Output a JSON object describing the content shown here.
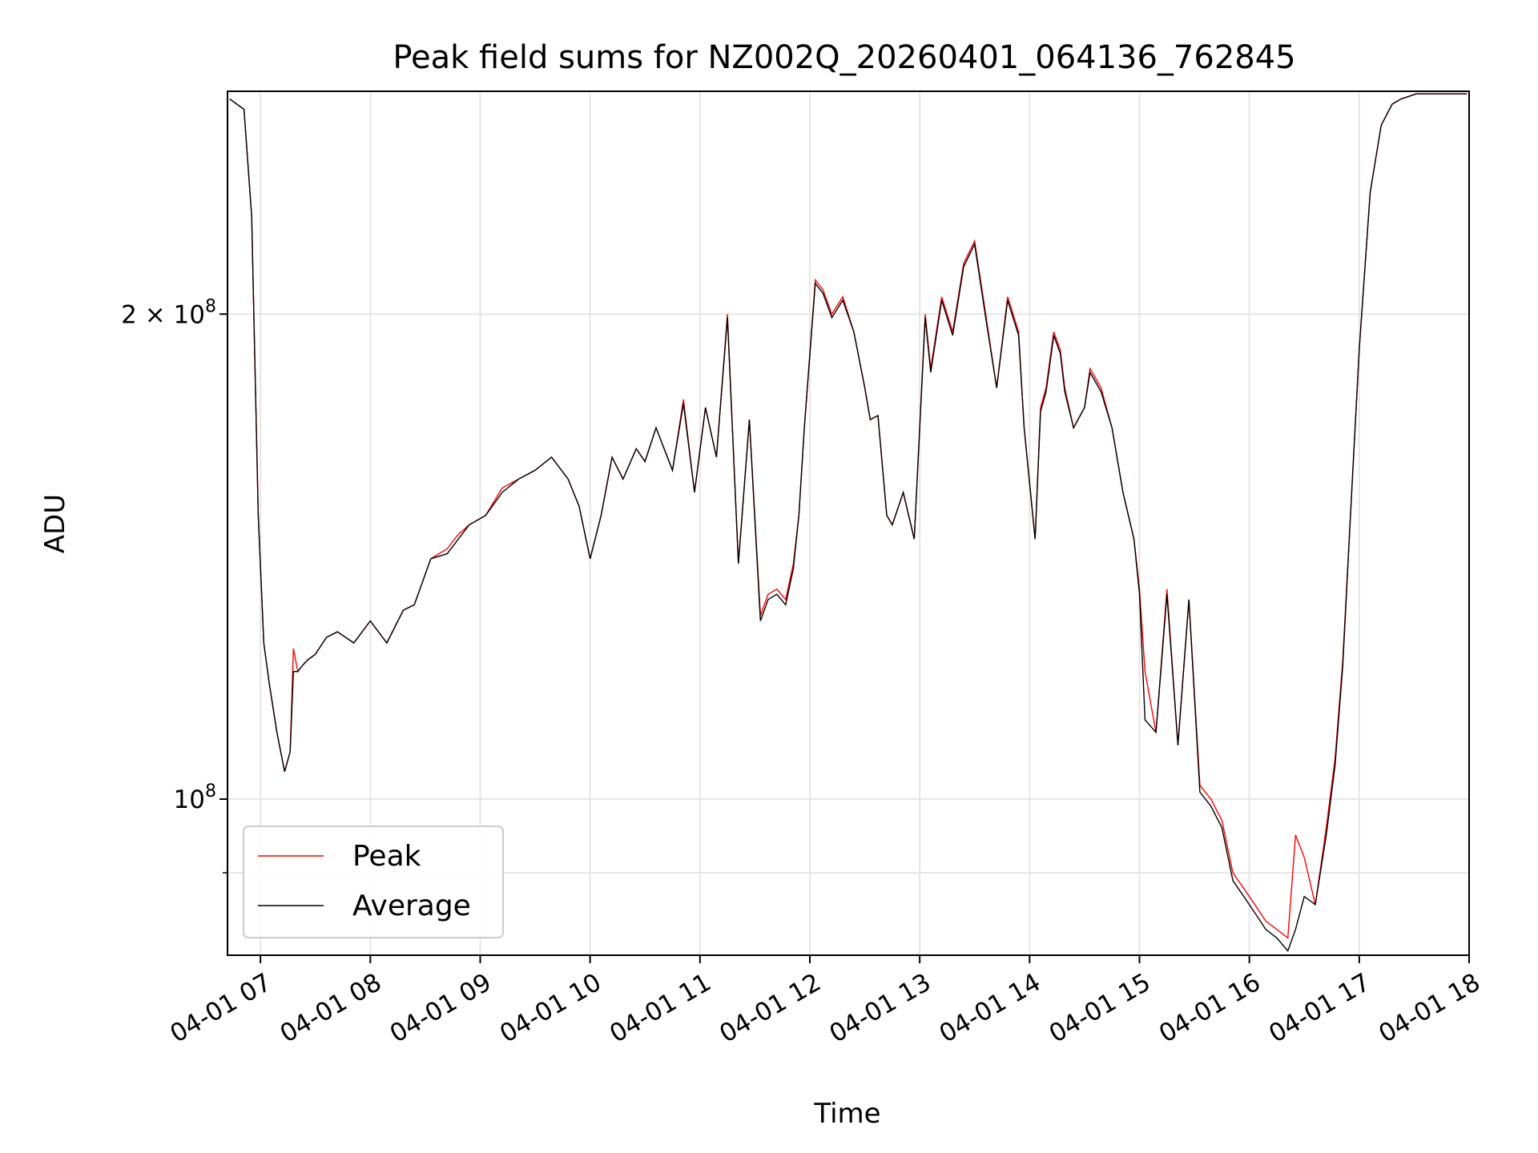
{
  "chart_data": {
    "type": "line",
    "title": "Peak field sums for NZ002Q_20260401_064136_762845",
    "xlabel": "Time",
    "ylabel": "ADU",
    "yscale": "log",
    "ylim": [
      80000000,
      275000000
    ],
    "xlim_hours": [
      6.7,
      18.0
    ],
    "x_ticks": [
      {
        "value": 7,
        "label": "04-01 07"
      },
      {
        "value": 8,
        "label": "04-01 08"
      },
      {
        "value": 9,
        "label": "04-01 09"
      },
      {
        "value": 10,
        "label": "04-01 10"
      },
      {
        "value": 11,
        "label": "04-01 11"
      },
      {
        "value": 12,
        "label": "04-01 12"
      },
      {
        "value": 13,
        "label": "04-01 13"
      },
      {
        "value": 14,
        "label": "04-01 14"
      },
      {
        "value": 15,
        "label": "04-01 15"
      },
      {
        "value": 16,
        "label": "04-01 16"
      },
      {
        "value": 17,
        "label": "04-01 17"
      },
      {
        "value": 18,
        "label": "04-01 18"
      }
    ],
    "y_ticks": [
      {
        "value": 100000000,
        "base": "10",
        "exp": "8",
        "coef": ""
      },
      {
        "value": 200000000,
        "base": "10",
        "exp": "8",
        "coef": "2 × "
      }
    ],
    "y_minor_ticks": [
      90000000
    ],
    "grid": true,
    "legend_position": "lower-left",
    "series": [
      {
        "name": "Peak",
        "color": "#ff0000",
        "x": [
          6.72,
          6.85,
          6.92,
          6.98,
          7.03,
          7.08,
          7.15,
          7.22,
          7.27,
          7.3,
          7.34,
          7.38,
          7.43,
          7.5,
          7.6,
          7.7,
          7.85,
          8.0,
          8.15,
          8.3,
          8.4,
          8.55,
          8.7,
          8.8,
          8.9,
          9.05,
          9.2,
          9.35,
          9.5,
          9.65,
          9.8,
          9.9,
          10.0,
          10.1,
          10.2,
          10.3,
          10.42,
          10.5,
          10.6,
          10.75,
          10.85,
          10.95,
          11.05,
          11.15,
          11.25,
          11.35,
          11.45,
          11.55,
          11.62,
          11.7,
          11.78,
          11.85,
          11.9,
          11.95,
          12.05,
          12.12,
          12.2,
          12.3,
          12.4,
          12.5,
          12.55,
          12.62,
          12.7,
          12.75,
          12.85,
          12.95,
          13.05,
          13.1,
          13.2,
          13.3,
          13.4,
          13.5,
          13.6,
          13.7,
          13.8,
          13.9,
          13.95,
          14.05,
          14.1,
          14.15,
          14.22,
          14.28,
          14.32,
          14.4,
          14.5,
          14.55,
          14.65,
          14.75,
          14.85,
          14.95,
          15.0,
          15.05,
          15.15,
          15.25,
          15.35,
          15.45,
          15.55,
          15.65,
          15.75,
          15.85,
          15.95,
          16.05,
          16.15,
          16.25,
          16.35,
          16.42,
          16.5,
          16.6,
          16.7,
          16.78,
          16.85,
          16.92,
          17.0,
          17.1,
          17.2,
          17.3,
          17.38,
          17.45,
          17.52,
          17.6,
          17.68,
          17.75,
          17.8,
          17.85,
          17.9,
          17.98
        ],
        "values": [
          272000000,
          268000000,
          230000000,
          150000000,
          125000000,
          118000000,
          110000000,
          104000000,
          107000000,
          124000000,
          120000000,
          121000000,
          122000000,
          123000000,
          126000000,
          127000000,
          125000000,
          129000000,
          125000000,
          131000000,
          132000000,
          141000000,
          143000000,
          146000000,
          148000000,
          150000000,
          156000000,
          158000000,
          160000000,
          163000000,
          158000000,
          152000000,
          141000000,
          150000000,
          163000000,
          158000000,
          165000000,
          162000000,
          170000000,
          160000000,
          177000000,
          155000000,
          175000000,
          163000000,
          200000000,
          140000000,
          172000000,
          130000000,
          134000000,
          135000000,
          133000000,
          140000000,
          150000000,
          170000000,
          210000000,
          207000000,
          200000000,
          205000000,
          195000000,
          180000000,
          172000000,
          173000000,
          150000000,
          148000000,
          155000000,
          145000000,
          200000000,
          185000000,
          205000000,
          195000000,
          215000000,
          222000000,
          200000000,
          180000000,
          205000000,
          195000000,
          170000000,
          145000000,
          175000000,
          180000000,
          195000000,
          190000000,
          180000000,
          170000000,
          175000000,
          185000000,
          180000000,
          170000000,
          155000000,
          145000000,
          135000000,
          120000000,
          110000000,
          135000000,
          108000000,
          133000000,
          102000000,
          100000000,
          97000000,
          90000000,
          88000000,
          86000000,
          84000000,
          83000000,
          82000000,
          95000000,
          92000000,
          86000000,
          96000000,
          106000000,
          122000000,
          150000000,
          190000000,
          238000000,
          262000000,
          270000000,
          272000000,
          273000000,
          274000000,
          274000000,
          274000000,
          274000000,
          274000000,
          274000000,
          274000000,
          274000000
        ]
      },
      {
        "name": "Average",
        "color": "#000000",
        "x": [
          6.72,
          6.85,
          6.92,
          6.98,
          7.03,
          7.08,
          7.15,
          7.22,
          7.27,
          7.3,
          7.34,
          7.38,
          7.43,
          7.5,
          7.6,
          7.7,
          7.85,
          8.0,
          8.15,
          8.3,
          8.4,
          8.55,
          8.7,
          8.8,
          8.9,
          9.05,
          9.2,
          9.35,
          9.5,
          9.65,
          9.8,
          9.9,
          10.0,
          10.1,
          10.2,
          10.3,
          10.42,
          10.5,
          10.6,
          10.75,
          10.85,
          10.95,
          11.05,
          11.15,
          11.25,
          11.35,
          11.45,
          11.55,
          11.62,
          11.7,
          11.78,
          11.85,
          11.9,
          11.95,
          12.05,
          12.12,
          12.2,
          12.3,
          12.4,
          12.5,
          12.55,
          12.62,
          12.7,
          12.75,
          12.85,
          12.95,
          13.05,
          13.1,
          13.2,
          13.3,
          13.4,
          13.5,
          13.6,
          13.7,
          13.8,
          13.9,
          13.95,
          14.05,
          14.1,
          14.15,
          14.22,
          14.28,
          14.32,
          14.4,
          14.5,
          14.55,
          14.65,
          14.75,
          14.85,
          14.95,
          15.0,
          15.05,
          15.15,
          15.25,
          15.35,
          15.45,
          15.55,
          15.65,
          15.75,
          15.85,
          15.95,
          16.05,
          16.15,
          16.25,
          16.35,
          16.42,
          16.5,
          16.6,
          16.7,
          16.78,
          16.85,
          16.92,
          17.0,
          17.1,
          17.2,
          17.3,
          17.38,
          17.45,
          17.52,
          17.6,
          17.68,
          17.75,
          17.8,
          17.85,
          17.9,
          17.98
        ],
        "values": [
          272000000,
          268000000,
          230000000,
          150000000,
          125000000,
          118000000,
          110000000,
          104000000,
          107000000,
          120000000,
          120000000,
          121000000,
          122000000,
          123000000,
          126000000,
          127000000,
          125000000,
          129000000,
          125000000,
          131000000,
          132000000,
          141000000,
          142000000,
          145000000,
          148000000,
          150000000,
          155000000,
          158000000,
          160000000,
          163000000,
          158000000,
          152000000,
          141000000,
          150000000,
          163000000,
          158000000,
          165000000,
          162000000,
          170000000,
          160000000,
          176000000,
          155000000,
          175000000,
          163000000,
          199000000,
          140000000,
          172000000,
          129000000,
          133000000,
          134000000,
          132000000,
          139000000,
          150000000,
          170000000,
          209000000,
          206000000,
          199000000,
          204000000,
          195000000,
          180000000,
          172000000,
          173000000,
          150000000,
          148000000,
          155000000,
          145000000,
          199000000,
          184000000,
          204000000,
          194000000,
          214000000,
          221000000,
          199000000,
          180000000,
          204000000,
          194000000,
          170000000,
          145000000,
          174000000,
          179000000,
          194000000,
          189000000,
          179000000,
          170000000,
          175000000,
          184000000,
          179000000,
          170000000,
          155000000,
          145000000,
          134000000,
          112000000,
          110000000,
          134000000,
          108000000,
          133000000,
          101000000,
          99000000,
          96000000,
          89000000,
          87000000,
          85000000,
          83000000,
          82000000,
          80500000,
          83000000,
          87000000,
          86000000,
          95000000,
          105000000,
          121000000,
          150000000,
          190000000,
          238000000,
          262000000,
          270000000,
          272000000,
          273000000,
          274000000,
          274000000,
          274000000,
          274000000,
          274000000,
          274000000,
          274000000,
          274000000
        ]
      }
    ]
  }
}
